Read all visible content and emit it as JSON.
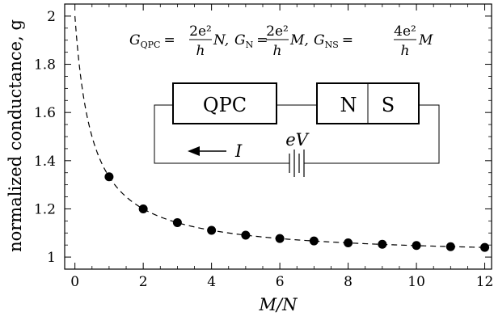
{
  "chart_data": {
    "type": "scatter",
    "xlabel": "M/N",
    "ylabel": "normalized conductance, g",
    "xlim": [
      -0.3,
      12.2
    ],
    "ylim": [
      0.95,
      2.05
    ],
    "x_ticks": [
      0,
      2,
      4,
      6,
      8,
      10,
      12
    ],
    "x_tick_labels": [
      "0",
      "2",
      "4",
      "6",
      "8",
      "10",
      "12"
    ],
    "y_ticks": [
      1,
      1.2,
      1.4,
      1.6,
      1.8,
      2
    ],
    "y_tick_labels": [
      "1",
      "1.2",
      "1.4",
      "1.6",
      "1.8",
      "2"
    ],
    "grid": false,
    "series": [
      {
        "style": "points",
        "x": [
          1,
          2,
          3,
          4,
          5,
          6,
          7,
          8,
          9,
          10,
          11,
          12
        ],
        "y": [
          1.333,
          1.2,
          1.143,
          1.111,
          1.091,
          1.077,
          1.067,
          1.059,
          1.053,
          1.048,
          1.043,
          1.04
        ]
      },
      {
        "style": "dashed-curve",
        "formula": "g = 1 + 1/(2(M/N) + 1)",
        "x_range": [
          0,
          12
        ]
      }
    ],
    "annotation": {
      "formula": {
        "G_QPC": "G",
        "sub_qpc": "QPC",
        "G_N": "G",
        "sub_n": "N",
        "G_NS": "G",
        "sub_ns": "NS",
        "eq": "=",
        "num_qpc": "2e²",
        "num_n": "2e²",
        "num_ns": "4e²",
        "den": "h",
        "var_n": "N,",
        "var_m1": "M,",
        "var_m2": "M"
      },
      "circuit": {
        "qpc_label": "QPC",
        "n_label": "N",
        "s_label": "S",
        "voltage_label": "eV",
        "current_label": "I"
      }
    }
  }
}
